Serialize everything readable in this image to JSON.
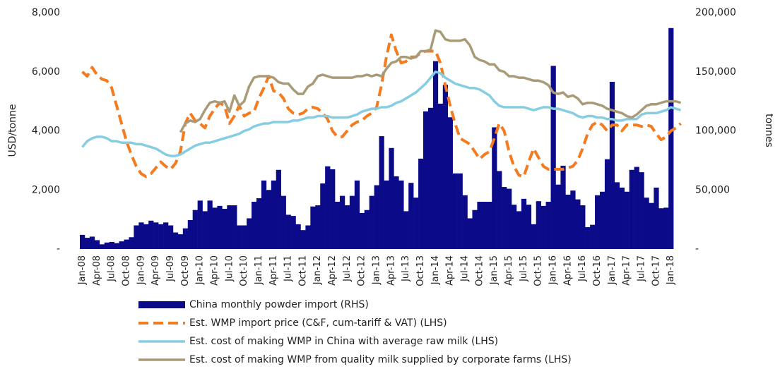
{
  "chart_data": {
    "type": "combo",
    "y_label": "USD/tonne",
    "y2_label": "tonnes",
    "ylim": [
      0,
      8000
    ],
    "yticks": [
      {
        "value": 0,
        "label": "-"
      },
      {
        "value": 2000,
        "label": "2,000"
      },
      {
        "value": 4000,
        "label": "4,000"
      },
      {
        "value": 6000,
        "label": "6,000"
      },
      {
        "value": 8000,
        "label": "8,000"
      }
    ],
    "y2lim": [
      0,
      200000
    ],
    "y2ticks": [
      {
        "value": 0,
        "label": "-"
      },
      {
        "value": 50000,
        "label": "50,000"
      },
      {
        "value": 100000,
        "label": "100,000"
      },
      {
        "value": 150000,
        "label": "150,000"
      },
      {
        "value": 200000,
        "label": "200,000"
      }
    ],
    "categories": [
      "Jan-08",
      null,
      null,
      "Apr-08",
      null,
      null,
      "Jul-08",
      null,
      null,
      "Oct-08",
      null,
      null,
      "Jan-09",
      null,
      null,
      "Apr-09",
      null,
      null,
      "Jul-09",
      null,
      null,
      "Oct-09",
      null,
      null,
      "Jan-10",
      null,
      null,
      "Apr-10",
      null,
      null,
      "Jul-10",
      null,
      null,
      "Oct-10",
      null,
      null,
      "Jan-11",
      null,
      null,
      "Apr-11",
      null,
      null,
      "Jul-11",
      null,
      null,
      "Oct-11",
      null,
      null,
      "Jan-12",
      null,
      null,
      "Apr-12",
      null,
      null,
      "Jul-12",
      null,
      null,
      "Oct-12",
      null,
      null,
      "Jan-13",
      null,
      null,
      "Apr-13",
      null,
      null,
      "Jul-13",
      null,
      null,
      "Oct-13",
      null,
      null,
      "Jan-14",
      null,
      null,
      "Apr-14",
      null,
      null,
      "Jul-14",
      null,
      null,
      "Oct-14",
      null,
      null,
      "Jan-15",
      null,
      null,
      "Apr-15",
      null,
      null,
      "Jul-15",
      null,
      null,
      "Oct-15",
      null,
      null,
      "Jan-16",
      null,
      null,
      "Apr-16",
      null,
      null,
      "Jul-16",
      null,
      null,
      "Oct-16",
      null,
      null,
      "Jan-17",
      null,
      null,
      "Apr-17",
      null,
      null,
      "Jul-17",
      null,
      null,
      "Oct-17",
      null,
      null,
      "Jan-18",
      null,
      null
    ],
    "series": [
      {
        "name": "China monthly powder import (RHS)",
        "type": "bar",
        "axis": "y2",
        "color": "#0b0b8a",
        "values": [
          12000,
          9500,
          10500,
          7500,
          4000,
          5500,
          6000,
          5000,
          6500,
          8000,
          10000,
          20000,
          22500,
          21000,
          24000,
          22500,
          21000,
          22500,
          20000,
          14000,
          12500,
          17500,
          24500,
          33000,
          41000,
          32000,
          41000,
          35000,
          36500,
          34000,
          37000,
          37000,
          20000,
          20000,
          26000,
          40000,
          43000,
          58000,
          50000,
          58000,
          67000,
          45000,
          29000,
          28000,
          21000,
          16000,
          20000,
          36000,
          37000,
          55500,
          70000,
          67500,
          40000,
          45000,
          37000,
          45000,
          58000,
          30500,
          33000,
          45000,
          54000,
          95500,
          58000,
          85500,
          61500,
          58000,
          32000,
          56000,
          43500,
          76500,
          116500,
          119500,
          159000,
          123000,
          139000,
          111500,
          64000,
          64000,
          45500,
          26000,
          33000,
          40000,
          40000,
          40000,
          103000,
          66000,
          52500,
          51000,
          37500,
          32000,
          42500,
          37500,
          21000,
          40500,
          36500,
          40000,
          155000,
          54500,
          70500,
          46000,
          49500,
          42000,
          37000,
          18500,
          20500,
          45500,
          48500,
          76000,
          141500,
          56500,
          52000,
          48500,
          67000,
          69500,
          65000,
          43500,
          39000,
          52000,
          34500,
          35000,
          187000,
          null,
          null
        ]
      },
      {
        "name": "Est. WMP import price (C&F, cum-tariff & VAT) (LHS)",
        "type": "line",
        "dash": true,
        "color": "#f47b20",
        "values": [
          6000,
          5850,
          6150,
          5900,
          5750,
          5700,
          5450,
          4850,
          4250,
          3650,
          3200,
          2800,
          2550,
          2450,
          2550,
          2750,
          2950,
          2800,
          2700,
          2900,
          3300,
          4250,
          4600,
          4350,
          4250,
          4100,
          4500,
          4750,
          4950,
          4850,
          4250,
          4500,
          4850,
          4500,
          4600,
          4650,
          5100,
          5450,
          5850,
          5350,
          5300,
          5100,
          4750,
          4600,
          4550,
          4600,
          4750,
          4800,
          4750,
          4600,
          4400,
          4000,
          3800,
          3800,
          4000,
          4200,
          4300,
          4350,
          4500,
          4600,
          4800,
          5550,
          6500,
          7250,
          6700,
          6300,
          6350,
          6500,
          6500,
          6650,
          6700,
          6700,
          6700,
          6300,
          5550,
          4850,
          4250,
          3750,
          3650,
          3550,
          3300,
          3050,
          3200,
          3300,
          3750,
          4250,
          4000,
          3300,
          2800,
          2500,
          2450,
          2950,
          3400,
          3100,
          2800,
          2700,
          2700,
          2700,
          2700,
          2750,
          2800,
          3000,
          3400,
          3900,
          4200,
          4300,
          4200,
          4000,
          4200,
          4200,
          4000,
          4200,
          4200,
          4200,
          4150,
          4200,
          4150,
          3900,
          3700,
          3800,
          4000,
          4100,
          4250
        ]
      },
      {
        "name": "Est. cost of making WMP in China with average raw milk (LHS)",
        "type": "line",
        "color": "#86cde4",
        "values": [
          3450,
          3650,
          3750,
          3800,
          3800,
          3750,
          3650,
          3650,
          3600,
          3600,
          3600,
          3550,
          3550,
          3500,
          3450,
          3400,
          3300,
          3200,
          3150,
          3150,
          3200,
          3300,
          3400,
          3500,
          3550,
          3600,
          3600,
          3650,
          3700,
          3750,
          3800,
          3850,
          3900,
          4000,
          4050,
          4150,
          4200,
          4250,
          4250,
          4300,
          4300,
          4300,
          4300,
          4350,
          4350,
          4400,
          4450,
          4450,
          4500,
          4500,
          4500,
          4450,
          4450,
          4450,
          4450,
          4500,
          4550,
          4650,
          4700,
          4750,
          4750,
          4800,
          4800,
          4850,
          4950,
          5000,
          5100,
          5200,
          5300,
          5450,
          5600,
          5800,
          6000,
          5950,
          5800,
          5700,
          5600,
          5550,
          5500,
          5450,
          5450,
          5400,
          5300,
          5200,
          5000,
          4850,
          4800,
          4800,
          4800,
          4800,
          4800,
          4750,
          4700,
          4750,
          4800,
          4800,
          4750,
          4750,
          4700,
          4650,
          4600,
          4500,
          4450,
          4500,
          4500,
          4450,
          4450,
          4400,
          4400,
          4350,
          4350,
          4400,
          4400,
          4400,
          4550,
          4600,
          4600,
          4600,
          4650,
          4700,
          4800,
          4750,
          4700
        ]
      },
      {
        "name": "Est. cost of making WMP from quality milk supplied by corporate farms (LHS)",
        "type": "line",
        "color": "#a99a78",
        "values": [
          null,
          null,
          null,
          null,
          null,
          null,
          null,
          null,
          null,
          null,
          null,
          null,
          null,
          null,
          null,
          null,
          null,
          null,
          null,
          null,
          3950,
          4250,
          4350,
          4300,
          4400,
          4700,
          4950,
          5000,
          4950,
          5000,
          4650,
          5200,
          4850,
          5000,
          5500,
          5800,
          5850,
          5850,
          5850,
          5800,
          5650,
          5600,
          5600,
          5400,
          5250,
          5250,
          5500,
          5600,
          5850,
          5900,
          5850,
          5800,
          5800,
          5800,
          5800,
          5800,
          5850,
          5850,
          5900,
          5850,
          5900,
          5850,
          6100,
          6300,
          6350,
          6500,
          6500,
          6450,
          6500,
          6700,
          6700,
          6750,
          7400,
          7350,
          7100,
          7050,
          7050,
          7050,
          7100,
          6900,
          6500,
          6400,
          6350,
          6250,
          6250,
          6050,
          6000,
          5850,
          5850,
          5800,
          5800,
          5750,
          5700,
          5700,
          5650,
          5550,
          5300,
          5250,
          5300,
          5150,
          5200,
          5100,
          4900,
          4950,
          4950,
          4900,
          4850,
          4750,
          4700,
          4650,
          4600,
          4500,
          4450,
          4550,
          4700,
          4850,
          4900,
          4900,
          4950,
          5000,
          5000,
          5000,
          4950
        ]
      }
    ]
  }
}
